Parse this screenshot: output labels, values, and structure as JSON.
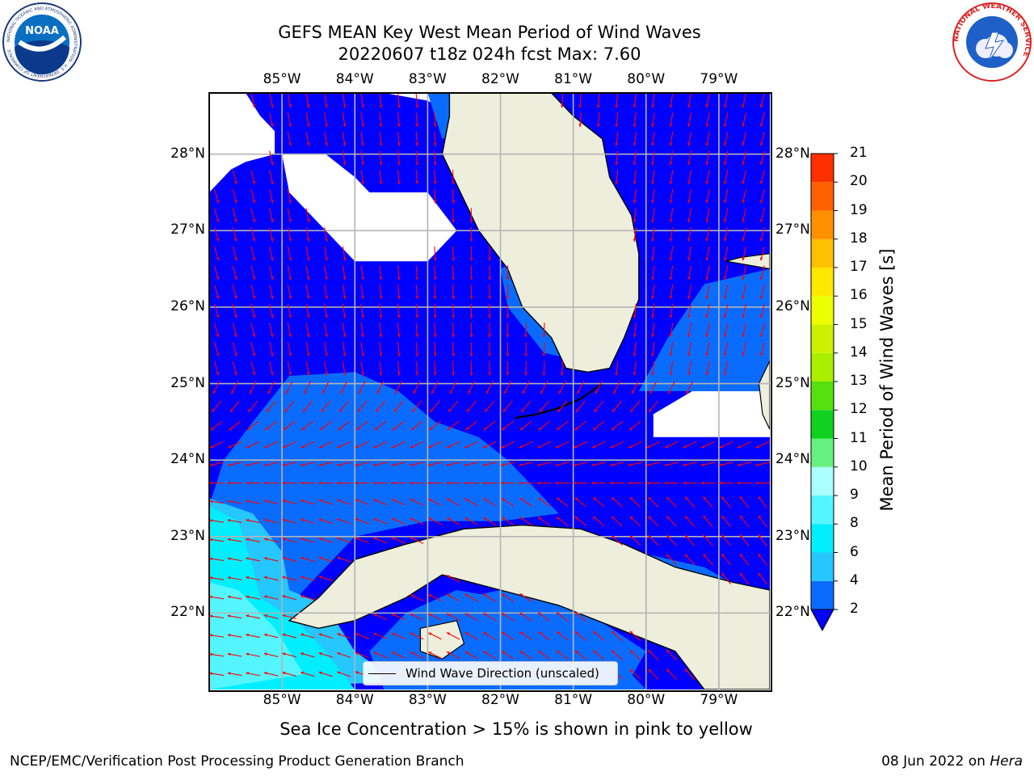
{
  "header": {
    "title_line1": "GEFS MEAN Key West Mean Period of Wind Waves",
    "title_line2": "20220607 t18z 024h fcst   Max: 7.60"
  },
  "logos": {
    "noaa": {
      "icon": "noaa-logo",
      "text": "NOAA",
      "ring_text": "NATIONAL OCEANIC AND ATMOSPHERIC ADMINISTRATION · U.S. DEPARTMENT OF COMMERCE"
    },
    "nws": {
      "icon": "nws-logo",
      "ring_text": "NATIONAL WEATHER SERVICE"
    }
  },
  "map": {
    "lon_labels": [
      "85°W",
      "84°W",
      "83°W",
      "82°W",
      "81°W",
      "80°W",
      "79°W"
    ],
    "lat_labels": [
      "28°N",
      "27°N",
      "26°N",
      "25°N",
      "24°N",
      "23°N",
      "22°N"
    ],
    "lon_range": [
      -86.0,
      -78.3
    ],
    "lat_range": [
      21.0,
      28.8
    ],
    "gridlines": true,
    "colors": {
      "land": "#eeeedd",
      "missing": "#ffffff",
      "arrow": "#ff0000",
      "coast": "#000000",
      "grid": "#b4b4b4"
    },
    "legend_label": "Wind Wave Direction (unscaled)"
  },
  "colorbar": {
    "title": "Mean Period of Wind Waves [s]",
    "ticks": [
      "2",
      "4",
      "6",
      "8",
      "9",
      "10",
      "11",
      "12",
      "13",
      "14",
      "15",
      "16",
      "17",
      "18",
      "19",
      "20",
      "21"
    ],
    "bins": [
      {
        "from": 2,
        "to": 4,
        "color": "#0a6cff"
      },
      {
        "from": 4,
        "to": 6,
        "color": "#26c6ff"
      },
      {
        "from": 6,
        "to": 8,
        "color": "#00eeff"
      },
      {
        "from": 8,
        "to": 9,
        "color": "#55f5ff"
      },
      {
        "from": 9,
        "to": 10,
        "color": "#aaffff"
      },
      {
        "from": 10,
        "to": 11,
        "color": "#66f080"
      },
      {
        "from": 11,
        "to": 12,
        "color": "#10d020"
      },
      {
        "from": 12,
        "to": 13,
        "color": "#55e010"
      },
      {
        "from": 13,
        "to": 14,
        "color": "#aaee00"
      },
      {
        "from": 14,
        "to": 15,
        "color": "#ccf000"
      },
      {
        "from": 15,
        "to": 16,
        "color": "#eeff00"
      },
      {
        "from": 16,
        "to": 17,
        "color": "#ffe800"
      },
      {
        "from": 17,
        "to": 18,
        "color": "#ffc000"
      },
      {
        "from": 18,
        "to": 19,
        "color": "#ff9000"
      },
      {
        "from": 19,
        "to": 20,
        "color": "#ff6000"
      },
      {
        "from": 20,
        "to": 21,
        "color": "#ff3000"
      },
      {
        "from": 21,
        "to": 22,
        "color": "#ff0000"
      }
    ],
    "under_color": "#0000ff",
    "period_levels": [
      {
        "label": "<2",
        "color": "#0000ff"
      },
      {
        "label": "2-4",
        "color": "#0a6cff"
      },
      {
        "label": "4-6",
        "color": "#26c6ff"
      },
      {
        "label": "6-8",
        "color": "#00eeff"
      },
      {
        "label": "8-9",
        "color": "#55f5ff"
      }
    ]
  },
  "footer": {
    "note": "Sea Ice Concentration > 15% is shown in pink to yellow",
    "credit": "NCEP/EMC/Verification Post Processing Product Generation Branch",
    "date": "08 Jun 2022 on",
    "machine": "Hera"
  }
}
